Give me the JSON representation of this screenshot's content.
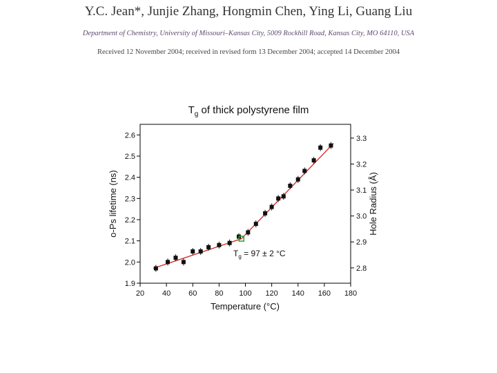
{
  "header": {
    "authors": "Y.C. Jean*, Junjie Zhang, Hongmin Chen, Ying Li, Guang Liu",
    "affiliation": "Department of Chemistry, University of Missouri–Kansas City, 5009 Rockhill Road, Kansas City, MO 64110, USA",
    "received": "Received 12 November 2004; received in revised form 13 December 2004; accepted 14 December 2004"
  },
  "colors": {
    "fit_line": "#d42020",
    "marker": "#111111",
    "tg_marker": "#2aa02a"
  },
  "chart_data": {
    "type": "scatter",
    "title_main": "T",
    "title_sub": "g",
    "title_rest": " of thick polystyrene film",
    "xlabel": "Temperature (°C)",
    "ylabel": "o-Ps lifetime (ns)",
    "y2label": "Hole Radius (Å)",
    "xlim": [
      20,
      180
    ],
    "ylim": [
      1.9,
      2.65
    ],
    "y2lim": [
      2.741,
      3.353
    ],
    "xticks": [
      "20",
      "40",
      "60",
      "80",
      "100",
      "120",
      "140",
      "160",
      "180"
    ],
    "yticks": [
      "1.9",
      "2.0",
      "2.1",
      "2.2",
      "2.3",
      "2.4",
      "2.5",
      "2.6"
    ],
    "y2ticks": [
      "2.8",
      "2.9",
      "3.0",
      "3.1",
      "3.2",
      "3.3"
    ],
    "annotation_main": "T",
    "annotation_sub": "g",
    "annotation_rest": " = 97 ± 2 °C",
    "tg_x": 97,
    "series": [
      {
        "x": [
          32,
          41,
          47,
          53,
          60,
          66,
          72,
          80,
          88,
          95,
          102,
          108,
          115,
          120,
          125,
          129,
          134,
          140,
          145,
          152,
          157,
          165
        ],
        "y": [
          1.97,
          2.0,
          2.02,
          2.0,
          2.05,
          2.05,
          2.07,
          2.08,
          2.09,
          2.12,
          2.14,
          2.18,
          2.23,
          2.26,
          2.3,
          2.31,
          2.36,
          2.39,
          2.43,
          2.48,
          2.54,
          2.55
        ]
      }
    ],
    "fit": [
      {
        "x": [
          30,
          97
        ],
        "y": [
          1.97,
          2.11
        ]
      },
      {
        "x": [
          97,
          167
        ],
        "y": [
          2.11,
          2.56
        ]
      }
    ]
  }
}
